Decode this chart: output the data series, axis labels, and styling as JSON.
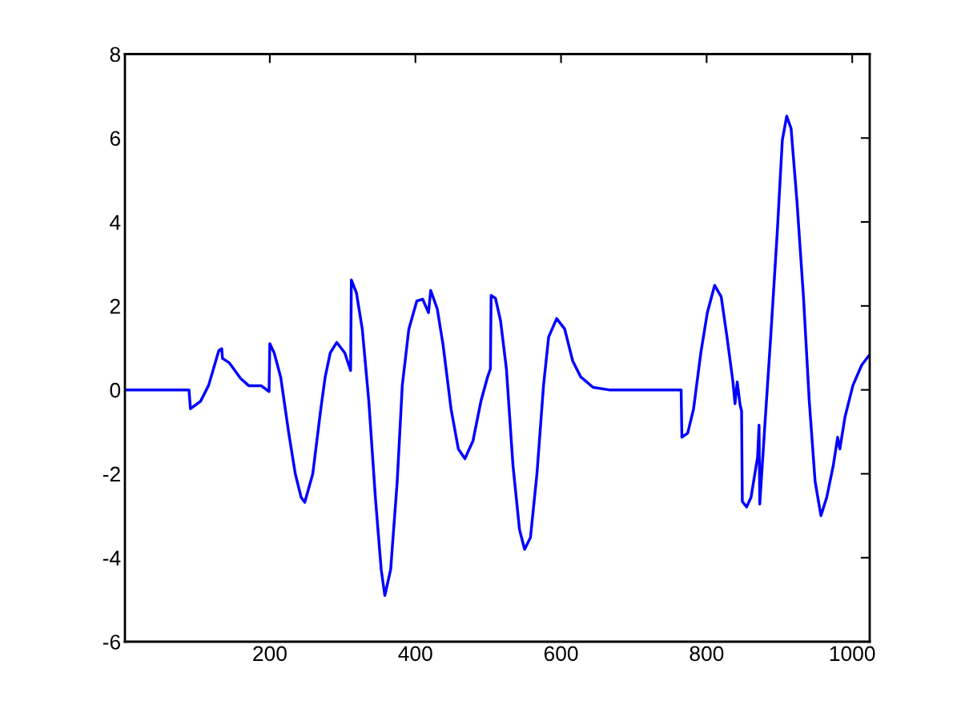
{
  "chart_data": {
    "type": "line",
    "x": [
      1,
      89,
      91,
      105,
      116,
      130,
      134,
      135,
      144,
      160,
      171,
      188,
      199,
      200,
      206,
      215,
      226,
      235,
      243,
      248,
      259,
      270,
      276,
      283,
      292,
      303,
      311,
      312,
      319,
      327,
      336,
      345,
      353,
      358,
      366,
      375,
      382,
      391,
      402,
      410,
      418,
      421,
      430,
      438,
      449,
      459,
      468,
      479,
      490,
      499,
      503,
      504,
      510,
      517,
      525,
      534,
      543,
      550,
      558,
      567,
      576,
      583,
      594,
      605,
      616,
      627,
      644,
      666,
      765,
      766,
      774,
      782,
      792,
      801,
      811,
      820,
      828,
      836,
      839,
      842,
      846,
      848,
      849,
      855,
      861,
      870,
      872,
      873,
      880,
      888,
      897,
      904,
      910,
      916,
      924,
      933,
      941,
      949,
      957,
      965,
      974,
      980,
      983,
      990,
      1001,
      1013,
      1023
    ],
    "series": [
      {
        "color": "#0000ff",
        "values": [
          0,
          0,
          -0.45,
          -0.27,
          0.11,
          0.94,
          0.98,
          0.75,
          0.65,
          0.27,
          0.1,
          0.1,
          -0.04,
          1.1,
          0.88,
          0.3,
          -1.03,
          -2.0,
          -2.56,
          -2.68,
          -2.0,
          -0.46,
          0.3,
          0.88,
          1.13,
          0.88,
          0.46,
          2.62,
          2.31,
          1.45,
          -0.27,
          -2.56,
          -4.28,
          -4.9,
          -4.28,
          -2.18,
          0.11,
          1.45,
          2.12,
          2.16,
          1.84,
          2.37,
          1.93,
          1.07,
          -0.46,
          -1.41,
          -1.64,
          -1.22,
          -0.27,
          0.3,
          0.5,
          2.25,
          2.18,
          1.64,
          0.5,
          -1.8,
          -3.33,
          -3.8,
          -3.52,
          -1.99,
          0.11,
          1.26,
          1.7,
          1.45,
          0.69,
          0.31,
          0.06,
          0,
          0,
          -1.13,
          -1.03,
          -0.46,
          0.88,
          1.84,
          2.49,
          2.22,
          1.26,
          0.21,
          -0.33,
          0.19,
          -0.36,
          -0.5,
          -2.66,
          -2.79,
          -2.56,
          -1.6,
          -0.84,
          -2.72,
          -0.84,
          1.26,
          3.75,
          5.95,
          6.52,
          6.23,
          4.51,
          2.22,
          -0.27,
          -2.18,
          -3.0,
          -2.56,
          -1.8,
          -1.13,
          -1.41,
          -0.65,
          0.11,
          0.59,
          0.82
        ]
      }
    ],
    "xlim": [
      1,
      1024
    ],
    "xticks": [
      200,
      400,
      600,
      800,
      1000
    ],
    "ylim": [
      -6,
      8
    ],
    "yticks": [
      -6,
      -4,
      -2,
      0,
      2,
      4,
      6,
      8
    ],
    "grid": false,
    "legend": false,
    "marker": "none",
    "line_style": "solid"
  }
}
